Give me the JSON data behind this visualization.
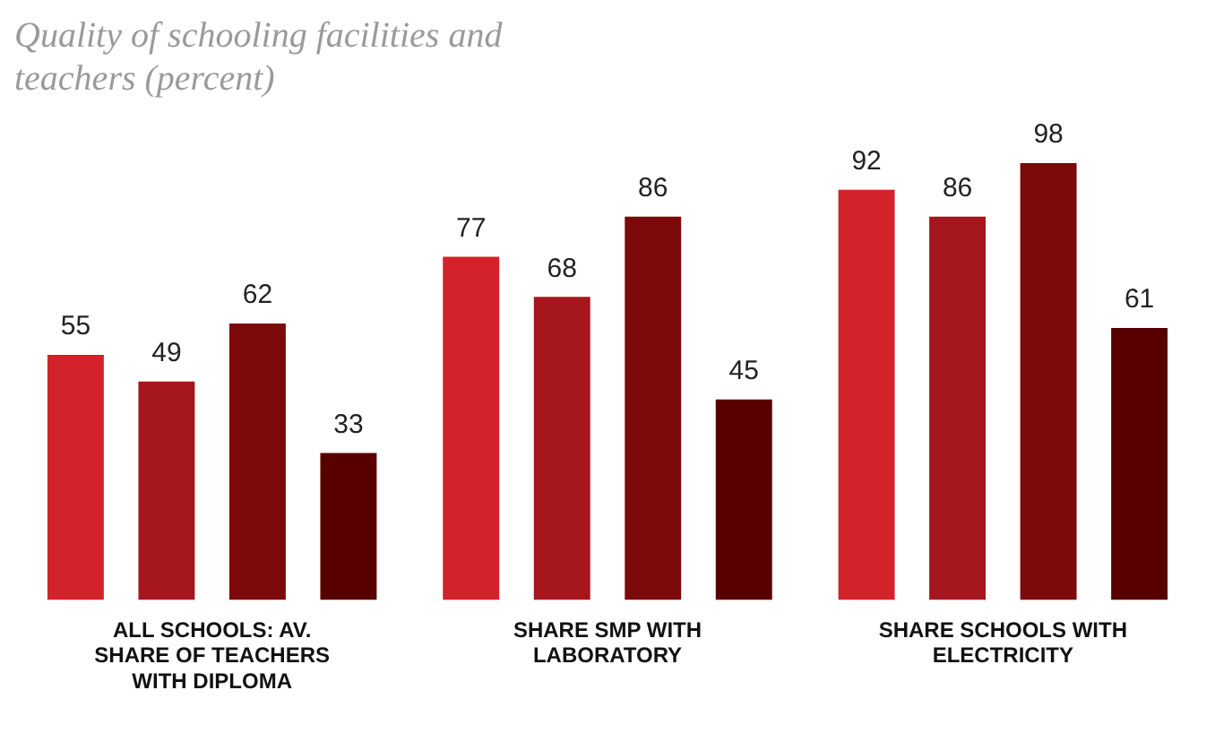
{
  "chart_data": {
    "type": "bar",
    "title": "Quality of schooling facilities and teachers (percent)",
    "categories": [
      "ALL SCHOOLS: AV. SHARE OF TEACHERS WITH DIPLOMA",
      "SHARE SMP WITH LABORATORY",
      "SHARE SCHOOLS WITH ELECTRICITY"
    ],
    "series": [
      {
        "color": "#d4222b",
        "values": [
          55,
          77,
          92
        ]
      },
      {
        "color": "#a5161d",
        "values": [
          49,
          68,
          86
        ]
      },
      {
        "color": "#7c0a0b",
        "values": [
          62,
          86,
          98
        ]
      },
      {
        "color": "#580000",
        "values": [
          33,
          45,
          61
        ]
      }
    ],
    "data_labels": true,
    "grid": false,
    "legend": false
  }
}
